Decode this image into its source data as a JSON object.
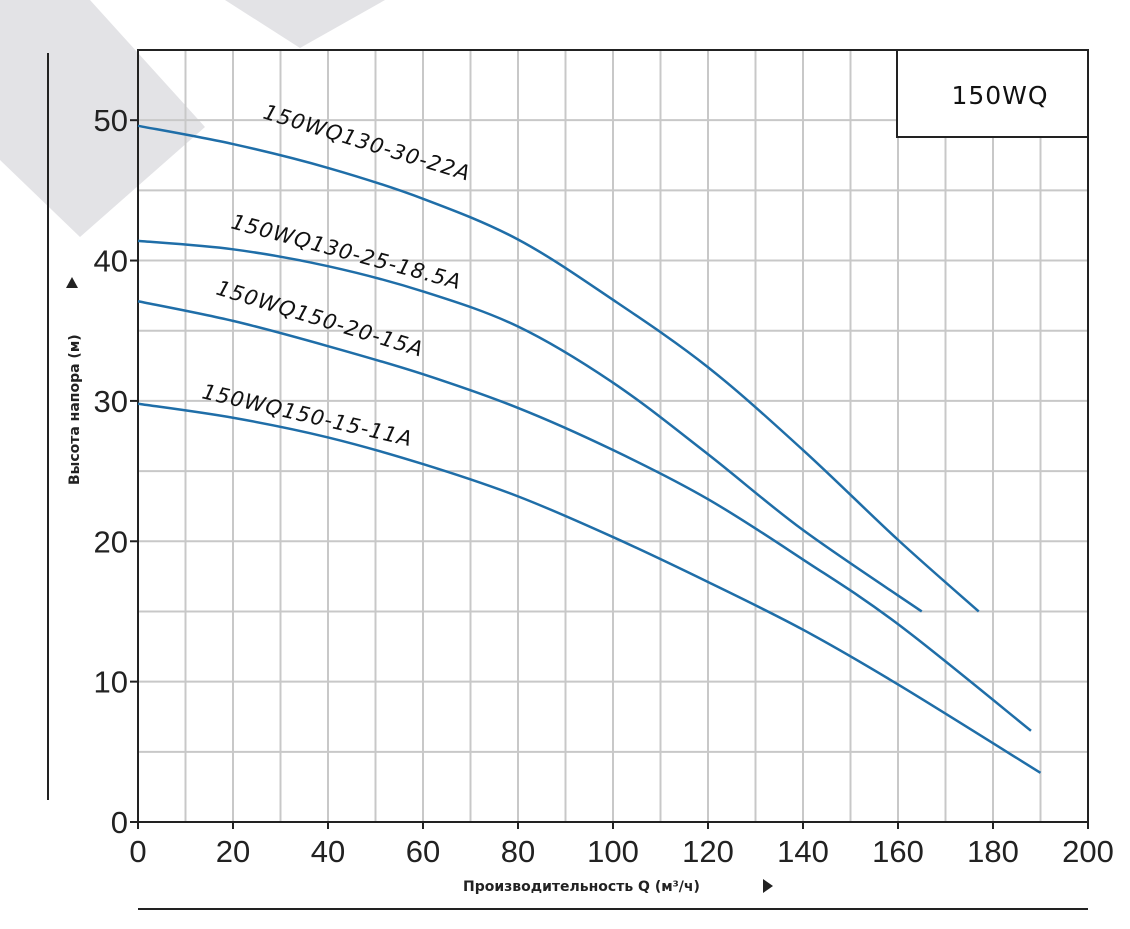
{
  "chart_data": {
    "type": "line",
    "title": "150WQ",
    "xlabel": "Производительность Q (м³/ч)",
    "ylabel": "Высота напора (м)",
    "xlim": [
      0,
      200
    ],
    "ylim": [
      0,
      55
    ],
    "x_ticks": [
      0,
      20,
      40,
      60,
      80,
      100,
      120,
      140,
      160,
      180,
      200
    ],
    "y_ticks": [
      0,
      10,
      20,
      30,
      40,
      50
    ],
    "grid": true,
    "line_color": "#1f6ea8",
    "series": [
      {
        "name": "150WQ130-30-22A",
        "x": [
          0,
          20,
          40,
          60,
          80,
          100,
          120,
          140,
          160,
          177
        ],
        "y": [
          49.6,
          48.3,
          46.6,
          44.4,
          41.5,
          37.2,
          32.4,
          26.5,
          20.1,
          15.0
        ]
      },
      {
        "name": "150WQ130-25-18.5A",
        "x": [
          0,
          20,
          40,
          60,
          80,
          100,
          120,
          140,
          165
        ],
        "y": [
          41.4,
          40.8,
          39.6,
          37.8,
          35.3,
          31.3,
          26.2,
          20.8,
          15.0
        ]
      },
      {
        "name": "150WQ150-20-15A",
        "x": [
          0,
          20,
          40,
          60,
          80,
          100,
          120,
          140,
          160,
          188
        ],
        "y": [
          37.1,
          35.7,
          33.9,
          31.9,
          29.5,
          26.5,
          23.0,
          18.7,
          14.1,
          6.5
        ]
      },
      {
        "name": "150WQ150-15-11A",
        "x": [
          0,
          20,
          40,
          60,
          80,
          100,
          120,
          140,
          160,
          190
        ],
        "y": [
          29.8,
          28.8,
          27.4,
          25.5,
          23.2,
          20.3,
          17.1,
          13.7,
          9.8,
          3.5
        ]
      }
    ]
  }
}
